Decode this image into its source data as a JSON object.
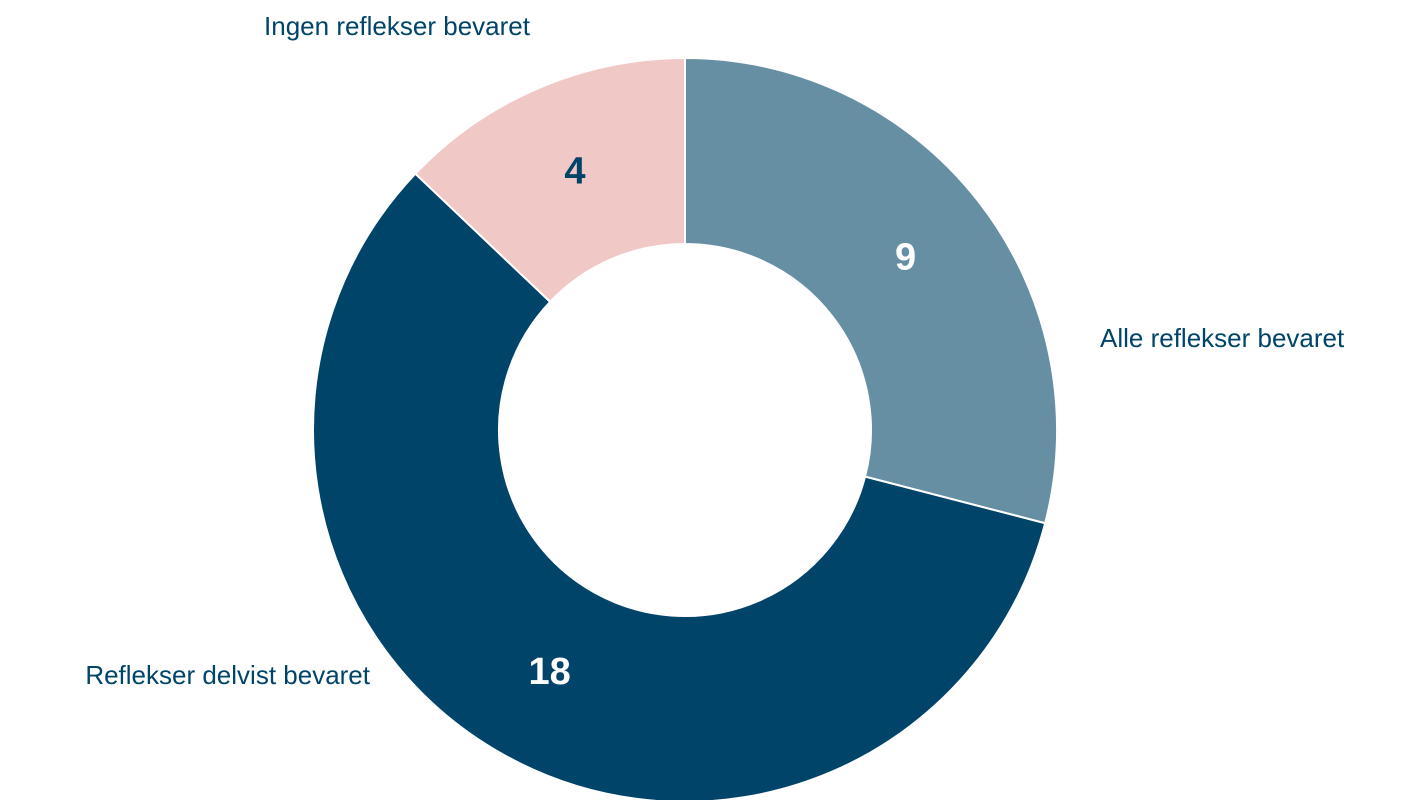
{
  "chart_data": {
    "type": "donut",
    "categories": [
      "Alle reflekser bevaret",
      "Reflekser delvist bevaret",
      "Ingen reflekser bevaret"
    ],
    "values": [
      9,
      18,
      4
    ],
    "colors": [
      "#668fa3",
      "#00446a",
      "#f0c8c6"
    ],
    "label_colors": [
      "#ffffff",
      "#ffffff",
      "#00446a"
    ]
  }
}
